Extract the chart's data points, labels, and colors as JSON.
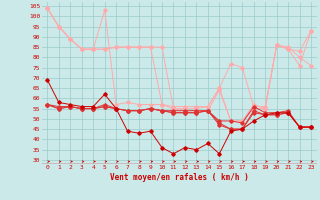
{
  "xlabel": "Vent moyen/en rafales ( km/h )",
  "xlim": [
    -0.5,
    23.5
  ],
  "ylim": [
    28,
    107
  ],
  "yticks": [
    30,
    35,
    40,
    45,
    50,
    55,
    60,
    65,
    70,
    75,
    80,
    85,
    90,
    95,
    100,
    105
  ],
  "xticks": [
    0,
    1,
    2,
    3,
    4,
    5,
    6,
    7,
    8,
    9,
    10,
    11,
    12,
    13,
    14,
    15,
    16,
    17,
    18,
    19,
    20,
    21,
    22,
    23
  ],
  "bg_color": "#cce9e9",
  "grid_color": "#99cccc",
  "dark_red": "#cc0000",
  "mid_red": "#dd3333",
  "light_pink": "#ffaaaa",
  "series_dark1": [
    69,
    58,
    57,
    56,
    56,
    62,
    55,
    44,
    43,
    44,
    36,
    33,
    36,
    35,
    38,
    33,
    44,
    45,
    49,
    52,
    53,
    53,
    46,
    46
  ],
  "series_dark2": [
    57,
    55,
    56,
    55,
    55,
    57,
    55,
    54,
    54,
    55,
    54,
    54,
    54,
    54,
    54,
    49,
    49,
    48,
    56,
    53,
    53,
    54,
    46,
    46
  ],
  "series_dark3": [
    57,
    55,
    56,
    55,
    55,
    56,
    55,
    54,
    54,
    55,
    54,
    53,
    53,
    53,
    54,
    48,
    45,
    45,
    54,
    52,
    52,
    53,
    46,
    46
  ],
  "series_dark4": [
    57,
    56,
    56,
    55,
    55,
    56,
    55,
    54,
    54,
    55,
    54,
    53,
    53,
    53,
    54,
    47,
    45,
    45,
    53,
    52,
    52,
    53,
    46,
    46
  ],
  "series_light1": [
    104,
    95,
    89,
    84,
    84,
    103,
    57,
    58,
    57,
    57,
    57,
    55,
    55,
    55,
    56,
    65,
    77,
    75,
    56,
    56,
    86,
    84,
    76,
    93
  ],
  "series_light2": [
    104,
    95,
    89,
    84,
    84,
    84,
    85,
    85,
    85,
    85,
    85,
    55,
    54,
    54,
    54,
    64,
    49,
    49,
    55,
    55,
    86,
    84,
    83,
    93
  ],
  "series_light3": [
    104,
    95,
    89,
    84,
    84,
    84,
    85,
    85,
    85,
    85,
    57,
    56,
    56,
    56,
    56,
    65,
    49,
    49,
    57,
    55,
    86,
    85,
    80,
    76
  ]
}
